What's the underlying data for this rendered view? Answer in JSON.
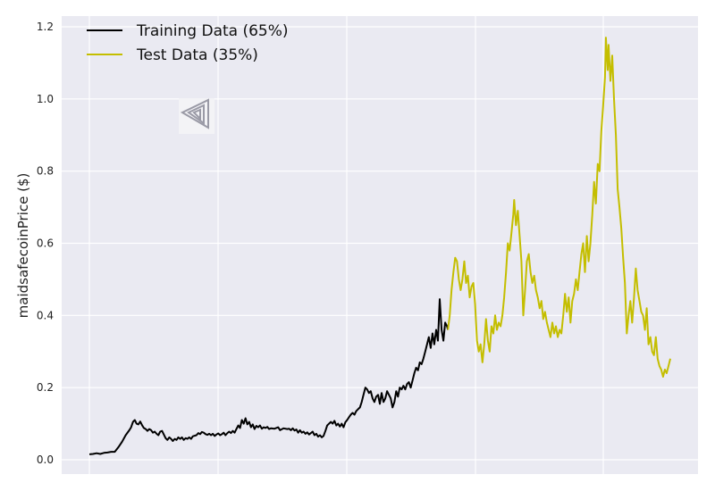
{
  "chart_data": {
    "type": "line",
    "title": "",
    "xlabel": "",
    "ylabel": "maidsafecoinPrice ($)",
    "ylim": [
      0,
      1.22
    ],
    "yticks": [
      0.0,
      0.2,
      0.4,
      0.6,
      0.8,
      1.0,
      1.2
    ],
    "ytick_labels": [
      "0.0",
      "0.2",
      "0.4",
      "0.6",
      "0.8",
      "1.0",
      "1.2"
    ],
    "grid": true,
    "legend_position": "top-left",
    "series": [
      {
        "name": "Training Data (65%)",
        "color": "#000000",
        "points": [
          [
            0,
            0.015
          ],
          [
            4,
            0.016
          ],
          [
            8,
            0.018
          ],
          [
            12,
            0.016
          ],
          [
            16,
            0.019
          ],
          [
            20,
            0.02
          ],
          [
            24,
            0.022
          ],
          [
            28,
            0.022
          ],
          [
            32,
            0.035
          ],
          [
            36,
            0.05
          ],
          [
            40,
            0.068
          ],
          [
            44,
            0.082
          ],
          [
            46,
            0.09
          ],
          [
            48,
            0.105
          ],
          [
            50,
            0.11
          ],
          [
            52,
            0.1
          ],
          [
            54,
            0.098
          ],
          [
            56,
            0.106
          ],
          [
            58,
            0.096
          ],
          [
            60,
            0.088
          ],
          [
            62,
            0.085
          ],
          [
            64,
            0.08
          ],
          [
            66,
            0.085
          ],
          [
            68,
            0.082
          ],
          [
            70,
            0.075
          ],
          [
            72,
            0.078
          ],
          [
            74,
            0.072
          ],
          [
            76,
            0.068
          ],
          [
            78,
            0.078
          ],
          [
            80,
            0.08
          ],
          [
            82,
            0.07
          ],
          [
            84,
            0.06
          ],
          [
            86,
            0.055
          ],
          [
            88,
            0.062
          ],
          [
            90,
            0.058
          ],
          [
            92,
            0.052
          ],
          [
            94,
            0.058
          ],
          [
            96,
            0.055
          ],
          [
            98,
            0.062
          ],
          [
            100,
            0.058
          ],
          [
            102,
            0.062
          ],
          [
            104,
            0.055
          ],
          [
            106,
            0.06
          ],
          [
            108,
            0.058
          ],
          [
            110,
            0.062
          ],
          [
            112,
            0.058
          ],
          [
            114,
            0.065
          ],
          [
            118,
            0.068
          ],
          [
            120,
            0.074
          ],
          [
            122,
            0.071
          ],
          [
            124,
            0.077
          ],
          [
            126,
            0.075
          ],
          [
            128,
            0.071
          ],
          [
            130,
            0.069
          ],
          [
            132,
            0.072
          ],
          [
            134,
            0.068
          ],
          [
            136,
            0.072
          ],
          [
            138,
            0.066
          ],
          [
            140,
            0.07
          ],
          [
            142,
            0.073
          ],
          [
            144,
            0.068
          ],
          [
            146,
            0.071
          ],
          [
            148,
            0.075
          ],
          [
            150,
            0.068
          ],
          [
            152,
            0.074
          ],
          [
            154,
            0.078
          ],
          [
            156,
            0.074
          ],
          [
            158,
            0.08
          ],
          [
            160,
            0.075
          ],
          [
            162,
            0.085
          ],
          [
            164,
            0.095
          ],
          [
            166,
            0.088
          ],
          [
            168,
            0.11
          ],
          [
            170,
            0.1
          ],
          [
            172,
            0.115
          ],
          [
            174,
            0.098
          ],
          [
            176,
            0.105
          ],
          [
            178,
            0.09
          ],
          [
            180,
            0.098
          ],
          [
            182,
            0.085
          ],
          [
            184,
            0.094
          ],
          [
            186,
            0.09
          ],
          [
            188,
            0.095
          ],
          [
            190,
            0.086
          ],
          [
            192,
            0.09
          ],
          [
            194,
            0.088
          ],
          [
            196,
            0.091
          ],
          [
            198,
            0.085
          ],
          [
            200,
            0.087
          ],
          [
            204,
            0.086
          ],
          [
            208,
            0.09
          ],
          [
            210,
            0.082
          ],
          [
            214,
            0.087
          ],
          [
            218,
            0.085
          ],
          [
            220,
            0.086
          ],
          [
            222,
            0.082
          ],
          [
            224,
            0.087
          ],
          [
            226,
            0.081
          ],
          [
            228,
            0.084
          ],
          [
            230,
            0.075
          ],
          [
            232,
            0.082
          ],
          [
            234,
            0.075
          ],
          [
            236,
            0.078
          ],
          [
            238,
            0.072
          ],
          [
            240,
            0.076
          ],
          [
            242,
            0.07
          ],
          [
            244,
            0.074
          ],
          [
            246,
            0.078
          ],
          [
            248,
            0.068
          ],
          [
            250,
            0.072
          ],
          [
            252,
            0.064
          ],
          [
            254,
            0.068
          ],
          [
            256,
            0.062
          ],
          [
            258,
            0.066
          ],
          [
            260,
            0.08
          ],
          [
            262,
            0.095
          ],
          [
            264,
            0.1
          ],
          [
            266,
            0.105
          ],
          [
            268,
            0.1
          ],
          [
            270,
            0.108
          ],
          [
            272,
            0.095
          ],
          [
            274,
            0.1
          ],
          [
            276,
            0.092
          ],
          [
            278,
            0.1
          ],
          [
            280,
            0.09
          ],
          [
            282,
            0.104
          ],
          [
            284,
            0.11
          ],
          [
            286,
            0.118
          ],
          [
            288,
            0.125
          ],
          [
            290,
            0.13
          ],
          [
            292,
            0.125
          ],
          [
            294,
            0.135
          ],
          [
            296,
            0.14
          ],
          [
            298,
            0.145
          ],
          [
            300,
            0.16
          ],
          [
            302,
            0.18
          ],
          [
            304,
            0.2
          ],
          [
            306,
            0.195
          ],
          [
            308,
            0.185
          ],
          [
            310,
            0.19
          ],
          [
            312,
            0.17
          ],
          [
            314,
            0.16
          ],
          [
            316,
            0.175
          ],
          [
            318,
            0.18
          ],
          [
            320,
            0.155
          ],
          [
            322,
            0.185
          ],
          [
            324,
            0.16
          ],
          [
            326,
            0.17
          ],
          [
            328,
            0.19
          ],
          [
            330,
            0.18
          ],
          [
            332,
            0.17
          ],
          [
            334,
            0.145
          ],
          [
            336,
            0.16
          ],
          [
            338,
            0.19
          ],
          [
            340,
            0.175
          ],
          [
            342,
            0.2
          ],
          [
            344,
            0.195
          ],
          [
            346,
            0.205
          ],
          [
            348,
            0.195
          ],
          [
            350,
            0.21
          ],
          [
            352,
            0.215
          ],
          [
            354,
            0.2
          ],
          [
            356,
            0.22
          ],
          [
            358,
            0.24
          ],
          [
            360,
            0.255
          ],
          [
            362,
            0.248
          ],
          [
            364,
            0.27
          ],
          [
            366,
            0.265
          ],
          [
            368,
            0.28
          ],
          [
            370,
            0.3
          ],
          [
            372,
            0.32
          ],
          [
            374,
            0.34
          ],
          [
            376,
            0.31
          ],
          [
            378,
            0.35
          ],
          [
            380,
            0.32
          ],
          [
            382,
            0.36
          ],
          [
            384,
            0.33
          ],
          [
            386,
            0.445
          ],
          [
            388,
            0.36
          ],
          [
            390,
            0.33
          ],
          [
            392,
            0.38
          ],
          [
            394,
            0.37
          ],
          [
            395,
            0.36
          ]
        ]
      },
      {
        "name": "Test Data (35%)",
        "color": "#c4be00",
        "points": [
          [
            395,
            0.36
          ],
          [
            397,
            0.4
          ],
          [
            399,
            0.47
          ],
          [
            401,
            0.52
          ],
          [
            403,
            0.56
          ],
          [
            405,
            0.55
          ],
          [
            407,
            0.5
          ],
          [
            409,
            0.47
          ],
          [
            411,
            0.5
          ],
          [
            413,
            0.55
          ],
          [
            415,
            0.49
          ],
          [
            417,
            0.51
          ],
          [
            419,
            0.45
          ],
          [
            421,
            0.48
          ],
          [
            423,
            0.49
          ],
          [
            425,
            0.43
          ],
          [
            427,
            0.33
          ],
          [
            429,
            0.3
          ],
          [
            431,
            0.32
          ],
          [
            433,
            0.27
          ],
          [
            435,
            0.32
          ],
          [
            437,
            0.39
          ],
          [
            439,
            0.33
          ],
          [
            441,
            0.3
          ],
          [
            443,
            0.37
          ],
          [
            445,
            0.35
          ],
          [
            447,
            0.4
          ],
          [
            449,
            0.36
          ],
          [
            451,
            0.38
          ],
          [
            453,
            0.37
          ],
          [
            455,
            0.4
          ],
          [
            457,
            0.45
          ],
          [
            459,
            0.52
          ],
          [
            461,
            0.6
          ],
          [
            463,
            0.58
          ],
          [
            465,
            0.63
          ],
          [
            467,
            0.68
          ],
          [
            468,
            0.72
          ],
          [
            470,
            0.65
          ],
          [
            472,
            0.69
          ],
          [
            474,
            0.62
          ],
          [
            476,
            0.55
          ],
          [
            478,
            0.4
          ],
          [
            480,
            0.47
          ],
          [
            482,
            0.55
          ],
          [
            484,
            0.57
          ],
          [
            486,
            0.52
          ],
          [
            488,
            0.49
          ],
          [
            490,
            0.51
          ],
          [
            492,
            0.47
          ],
          [
            494,
            0.45
          ],
          [
            496,
            0.42
          ],
          [
            498,
            0.44
          ],
          [
            500,
            0.39
          ],
          [
            502,
            0.41
          ],
          [
            504,
            0.38
          ],
          [
            506,
            0.36
          ],
          [
            508,
            0.34
          ],
          [
            510,
            0.38
          ],
          [
            512,
            0.35
          ],
          [
            514,
            0.37
          ],
          [
            516,
            0.34
          ],
          [
            518,
            0.36
          ],
          [
            520,
            0.35
          ],
          [
            522,
            0.4
          ],
          [
            524,
            0.46
          ],
          [
            526,
            0.41
          ],
          [
            528,
            0.45
          ],
          [
            530,
            0.38
          ],
          [
            532,
            0.44
          ],
          [
            534,
            0.46
          ],
          [
            536,
            0.5
          ],
          [
            538,
            0.47
          ],
          [
            540,
            0.52
          ],
          [
            542,
            0.57
          ],
          [
            544,
            0.6
          ],
          [
            546,
            0.52
          ],
          [
            548,
            0.62
          ],
          [
            550,
            0.55
          ],
          [
            552,
            0.6
          ],
          [
            554,
            0.68
          ],
          [
            556,
            0.77
          ],
          [
            558,
            0.71
          ],
          [
            560,
            0.82
          ],
          [
            562,
            0.8
          ],
          [
            564,
            0.91
          ],
          [
            566,
            0.98
          ],
          [
            568,
            1.06
          ],
          [
            569,
            1.17
          ],
          [
            571,
            1.08
          ],
          [
            572,
            1.15
          ],
          [
            574,
            1.05
          ],
          [
            576,
            1.12
          ],
          [
            578,
            1.0
          ],
          [
            580,
            0.9
          ],
          [
            582,
            0.75
          ],
          [
            584,
            0.7
          ],
          [
            586,
            0.64
          ],
          [
            588,
            0.56
          ],
          [
            590,
            0.49
          ],
          [
            592,
            0.35
          ],
          [
            594,
            0.4
          ],
          [
            596,
            0.44
          ],
          [
            598,
            0.38
          ],
          [
            600,
            0.45
          ],
          [
            602,
            0.53
          ],
          [
            604,
            0.47
          ],
          [
            606,
            0.44
          ],
          [
            608,
            0.41
          ],
          [
            610,
            0.4
          ],
          [
            612,
            0.36
          ],
          [
            614,
            0.42
          ],
          [
            616,
            0.32
          ],
          [
            618,
            0.34
          ],
          [
            620,
            0.3
          ],
          [
            622,
            0.29
          ],
          [
            624,
            0.34
          ],
          [
            626,
            0.28
          ],
          [
            628,
            0.26
          ],
          [
            630,
            0.25
          ],
          [
            632,
            0.23
          ],
          [
            634,
            0.25
          ],
          [
            636,
            0.24
          ],
          [
            638,
            0.26
          ],
          [
            640,
            0.28
          ]
        ]
      }
    ]
  }
}
